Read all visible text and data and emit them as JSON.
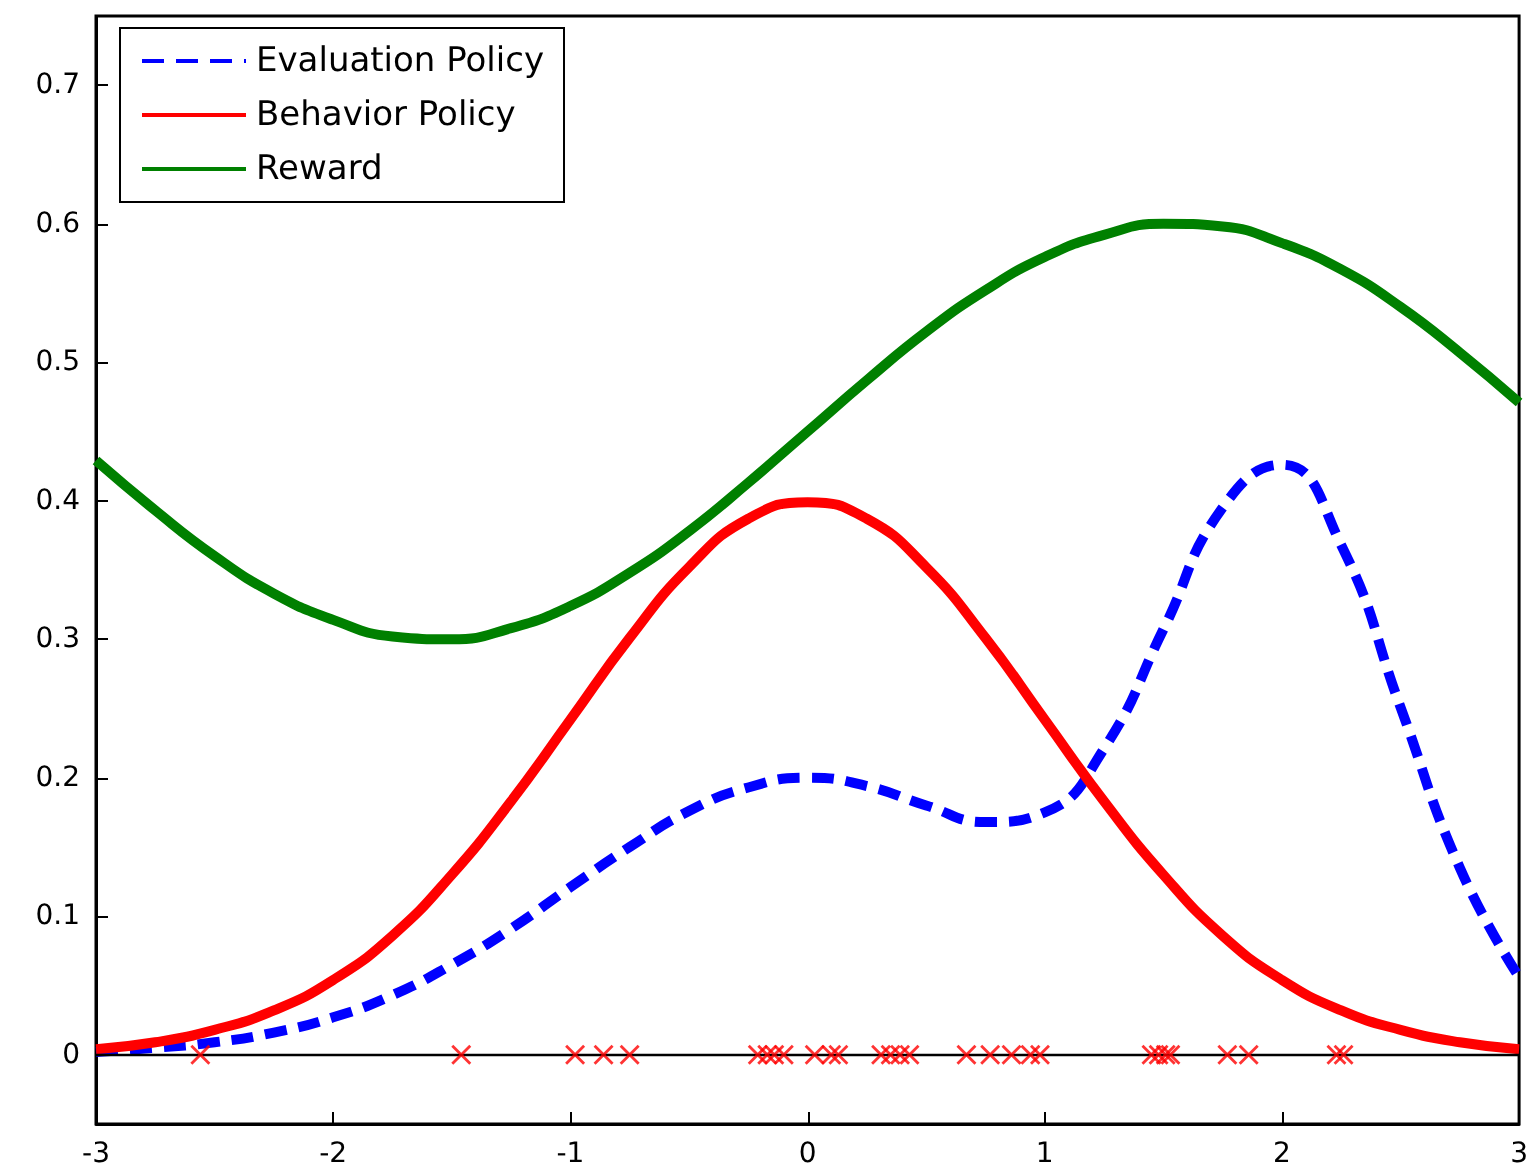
{
  "chart_data": {
    "type": "line",
    "x": [
      -3,
      -2.75,
      -2.5,
      -2.25,
      -2,
      -1.75,
      -1.5,
      -1.25,
      -1,
      -0.75,
      -0.5,
      -0.25,
      0,
      0.25,
      0.5,
      0.75,
      1,
      1.25,
      1.5,
      1.75,
      2,
      2.25,
      2.5,
      2.75,
      3
    ],
    "series": [
      {
        "name": "Evaluation Policy",
        "color": "#0000ff",
        "line_style": "dashed",
        "values": [
          0.002,
          0.005,
          0.009,
          0.016,
          0.027,
          0.043,
          0.065,
          0.091,
          0.121,
          0.15,
          0.176,
          0.193,
          0.2,
          0.194,
          0.18,
          0.168,
          0.175,
          0.221,
          0.307,
          0.395,
          0.426,
          0.368,
          0.251,
          0.135,
          0.056
        ]
      },
      {
        "name": "Behavior Policy",
        "color": "#ff0000",
        "line_style": "solid",
        "values": [
          0.004,
          0.009,
          0.018,
          0.032,
          0.054,
          0.086,
          0.13,
          0.183,
          0.242,
          0.301,
          0.352,
          0.387,
          0.399,
          0.387,
          0.352,
          0.301,
          0.242,
          0.183,
          0.13,
          0.086,
          0.054,
          0.032,
          0.018,
          0.009,
          0.004
        ]
      },
      {
        "name": "Reward",
        "color": "#008000",
        "line_style": "solid",
        "values": [
          0.429,
          0.393,
          0.36,
          0.333,
          0.314,
          0.302,
          0.3,
          0.308,
          0.324,
          0.348,
          0.378,
          0.413,
          0.45,
          0.487,
          0.522,
          0.552,
          0.576,
          0.592,
          0.6,
          0.598,
          0.586,
          0.567,
          0.54,
          0.507,
          0.471
        ]
      },
      {
        "type": "scatter",
        "marker": "cross",
        "color": "#ff0000",
        "x": [
          -2.56,
          -1.46,
          -0.98,
          -0.86,
          -0.75,
          -0.21,
          -0.17,
          -0.14,
          -0.1,
          0.03,
          0.1,
          0.13,
          0.31,
          0.35,
          0.39,
          0.43,
          0.67,
          0.77,
          0.86,
          0.94,
          0.98,
          1.45,
          1.48,
          1.51,
          1.53,
          1.77,
          1.86,
          2.23,
          2.26
        ],
        "values": [
          0,
          0,
          0,
          0,
          0,
          0,
          0,
          0,
          0,
          0,
          0,
          0,
          0,
          0,
          0,
          0,
          0,
          0,
          0,
          0,
          0,
          0,
          0,
          0,
          0,
          0,
          0,
          0,
          0
        ]
      }
    ],
    "xlim": [
      -3,
      3
    ],
    "xticks": [
      -3,
      -2,
      -1,
      0,
      1,
      2,
      3
    ],
    "ylim": [
      -0.05,
      0.75
    ],
    "yticks": [
      0,
      0.1,
      0.2,
      0.3,
      0.4,
      0.5,
      0.6,
      0.7
    ],
    "ref_lines": [
      {
        "axis": "y",
        "value": 0,
        "color": "#000000"
      }
    ],
    "grid": false,
    "legend": "top left"
  }
}
